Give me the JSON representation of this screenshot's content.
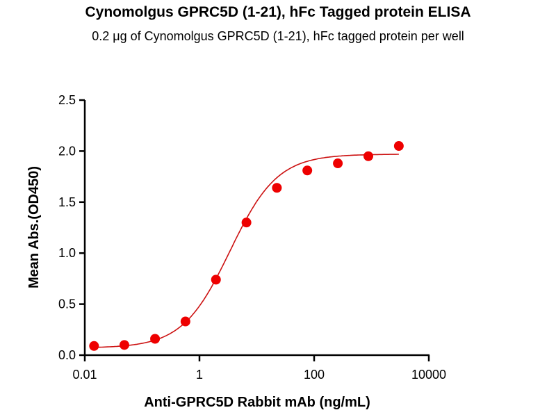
{
  "chart_data": {
    "type": "scatter",
    "title": "Cynomolgus GPRC5D (1-21), hFc Tagged protein ELISA",
    "subtitle": "0.2 μg of Cynomolgus GPRC5D (1-21), hFc tagged protein per well",
    "xlabel": "Anti-GPRC5D Rabbit mAb (ng/mL)",
    "ylabel": "Mean Abs.(OD450)",
    "xscale": "log",
    "xlim": [
      0.01,
      10000
    ],
    "ylim": [
      0,
      2.5
    ],
    "xticks": [
      {
        "v": 0.01,
        "label": "0.01"
      },
      {
        "v": 1,
        "label": "1"
      },
      {
        "v": 100,
        "label": "100"
      },
      {
        "v": 10000,
        "label": "10000"
      }
    ],
    "yticks": [
      {
        "v": 0,
        "label": "0.0"
      },
      {
        "v": 0.5,
        "label": "0.5"
      },
      {
        "v": 1,
        "label": "1.0"
      },
      {
        "v": 1.5,
        "label": "1.5"
      },
      {
        "v": 2,
        "label": "2.0"
      },
      {
        "v": 2.5,
        "label": "2.5"
      }
    ],
    "series": [
      {
        "name": "Cynomolgus GPRC5D (1-21), hFc",
        "color": "#ee0000",
        "line_color": "#cc1111",
        "x": [
          0.0145,
          0.049,
          0.168,
          0.57,
          1.94,
          6.6,
          22.4,
          76,
          259,
          882,
          3000
        ],
        "y": [
          0.09,
          0.1,
          0.16,
          0.33,
          0.74,
          1.3,
          1.64,
          1.81,
          1.88,
          1.95,
          2.05
        ],
        "fit": {
          "model": "4PL",
          "bottom": 0.07,
          "top": 1.97,
          "ec50": 3.4,
          "hill": 1.05
        }
      }
    ],
    "grid": false,
    "legend": "none"
  }
}
